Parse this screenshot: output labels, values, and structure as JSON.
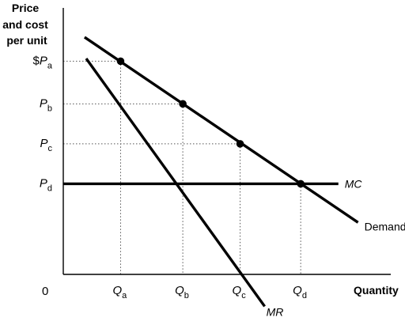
{
  "chart_data": {
    "type": "line",
    "title": "",
    "ylabel_lines": [
      "Price",
      "and cost",
      "per unit"
    ],
    "xlabel": "Quantity",
    "origin_label": "0",
    "grid": false,
    "x_range": [
      0,
      10
    ],
    "y_range": [
      0,
      10
    ],
    "x_ticks": [
      {
        "main": "Q",
        "sub": "a",
        "value": 1.75
      },
      {
        "main": "Q",
        "sub": "b",
        "value": 3.65
      },
      {
        "main": "Q",
        "sub": "c",
        "value": 5.4
      },
      {
        "main": "Q",
        "sub": "d",
        "value": 7.25
      }
    ],
    "y_ticks": [
      {
        "prefix": "$",
        "main": "P",
        "sub": "a",
        "value": 8.0
      },
      {
        "prefix": "",
        "main": "P",
        "sub": "b",
        "value": 6.4
      },
      {
        "prefix": "",
        "main": "P",
        "sub": "c",
        "value": 4.9
      },
      {
        "prefix": "",
        "main": "P",
        "sub": "d",
        "value": 3.4
      }
    ],
    "series": [
      {
        "name": "Demand",
        "style": "solid",
        "x": [
          0.65,
          9.0
        ],
        "y": [
          8.9,
          1.95
        ]
      },
      {
        "name": "MR",
        "style": "solid",
        "x": [
          0.7,
          6.15
        ],
        "y": [
          8.1,
          -1.2
        ]
      },
      {
        "name": "MC",
        "style": "solid",
        "x": [
          0.0,
          8.4
        ],
        "y": [
          3.4,
          3.4
        ]
      }
    ],
    "points": [
      {
        "x": 1.75,
        "y": 8.0
      },
      {
        "x": 3.65,
        "y": 6.4
      },
      {
        "x": 5.4,
        "y": 4.9
      },
      {
        "x": 7.25,
        "y": 3.4
      }
    ],
    "guides": [
      {
        "x": 1.75,
        "y": 8.0
      },
      {
        "x": 3.65,
        "y": 6.4
      },
      {
        "x": 5.4,
        "y": 4.9
      },
      {
        "x": 7.25,
        "y": 3.4
      }
    ]
  }
}
